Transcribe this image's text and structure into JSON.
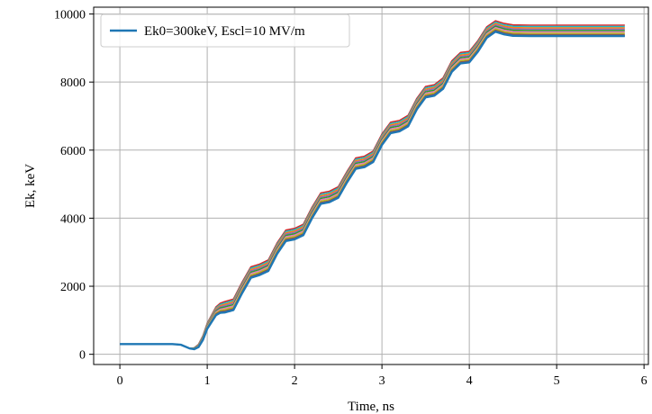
{
  "chart_data": {
    "type": "line",
    "title": "",
    "xlabel": "Time, ns",
    "ylabel": "Ek, keV",
    "xlim": [
      -0.3,
      6.05
    ],
    "ylim": [
      -300,
      10200
    ],
    "x_ticks": [
      0,
      1,
      2,
      3,
      4,
      5,
      6
    ],
    "y_ticks": [
      0,
      2000,
      4000,
      6000,
      8000,
      10000
    ],
    "grid": true,
    "legend": {
      "position": "top-left",
      "entries": [
        "Ek0=300keV, Escl=10 MV/m"
      ]
    },
    "x": [
      0,
      0.6,
      0.7,
      0.8,
      0.85,
      0.9,
      0.95,
      1.0,
      1.1,
      1.15,
      1.2,
      1.3,
      1.4,
      1.5,
      1.6,
      1.7,
      1.8,
      1.9,
      2.0,
      2.1,
      2.2,
      2.3,
      2.4,
      2.5,
      2.6,
      2.7,
      2.8,
      2.9,
      3.0,
      3.1,
      3.2,
      3.3,
      3.4,
      3.5,
      3.6,
      3.7,
      3.8,
      3.9,
      4.0,
      4.1,
      4.2,
      4.3,
      4.4,
      4.5,
      4.7,
      5.0,
      5.5,
      5.78
    ],
    "series": [
      {
        "name": "Ek0=300keV, Escl=10 MV/m",
        "color": "#1f77b4",
        "values": [
          300,
          300,
          280,
          170,
          150,
          210,
          420,
          750,
          1150,
          1220,
          1230,
          1300,
          1800,
          2250,
          2330,
          2450,
          2950,
          3330,
          3380,
          3500,
          4000,
          4420,
          4470,
          4600,
          5050,
          5450,
          5500,
          5650,
          6150,
          6500,
          6550,
          6700,
          7200,
          7550,
          7600,
          7800,
          8300,
          8550,
          8580,
          8900,
          9300,
          9480,
          9400,
          9360,
          9350,
          9350,
          9350,
          9350
        ]
      }
    ],
    "spread_offsets_keV": [
      0,
      40,
      80,
      120,
      160,
      200,
      240,
      280,
      320
    ],
    "spread_colors": [
      "#7f7f7f",
      "#8c564b",
      "#bcbd22",
      "#e377c2",
      "#2ca02c",
      "#9467bd",
      "#ff7f0e",
      "#17becf",
      "#d62728"
    ]
  }
}
